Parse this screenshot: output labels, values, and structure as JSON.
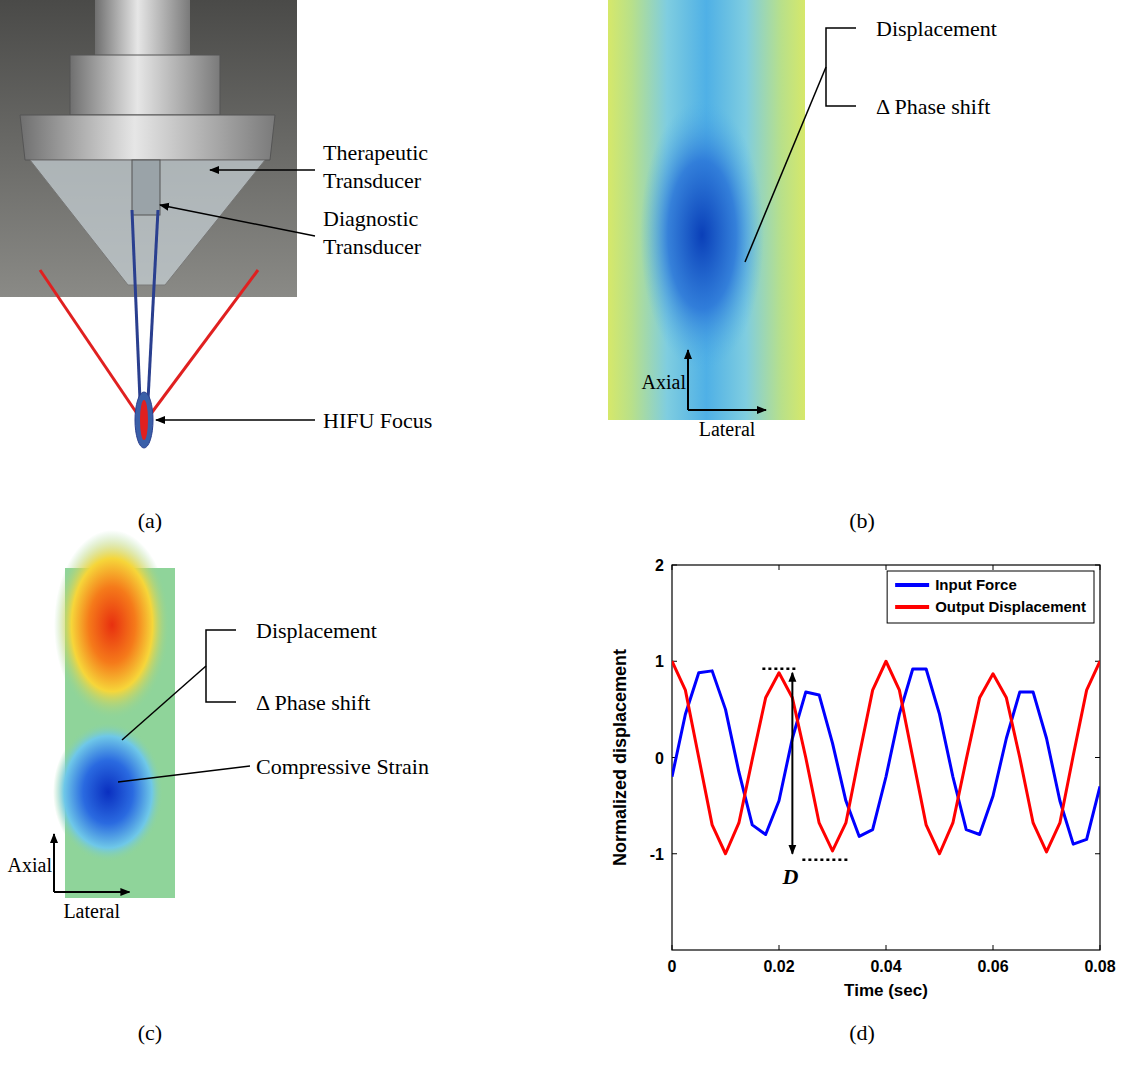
{
  "figure": {
    "panel_labels": [
      "(a)",
      "(b)",
      "(c)",
      "(d)"
    ],
    "a": {
      "labels": [
        "Therapeutic Transducer",
        "Diagnostic Transducer",
        "HIFU Focus"
      ]
    },
    "b": {
      "labels": [
        "Displacement",
        "Δ Phase shift"
      ],
      "axes": [
        "Axial",
        "Lateral"
      ]
    },
    "c": {
      "labels": [
        "Displacement",
        "Δ Phase shift",
        "Compressive Strain"
      ],
      "axes": [
        "Axial",
        "Lateral"
      ]
    }
  },
  "chart_data": {
    "type": "line",
    "x_label": "Time (sec)",
    "y_label": "Normalized displacement",
    "x": [
      0,
      0.0025,
      0.005,
      0.0075,
      0.01,
      0.0125,
      0.015,
      0.0175,
      0.02,
      0.0225,
      0.025,
      0.0275,
      0.03,
      0.0325,
      0.035,
      0.0375,
      0.04,
      0.0425,
      0.045,
      0.0475,
      0.05,
      0.0525,
      0.055,
      0.0575,
      0.06,
      0.0625,
      0.065,
      0.0675,
      0.07,
      0.0725,
      0.075,
      0.0775,
      0.08
    ],
    "series": [
      {
        "name": "Input Force",
        "color": "#0000ff",
        "values": [
          -0.2,
          0.45,
          0.88,
          0.9,
          0.5,
          -0.15,
          -0.7,
          -0.8,
          -0.45,
          0.2,
          0.68,
          0.65,
          0.15,
          -0.45,
          -0.82,
          -0.75,
          -0.2,
          0.45,
          0.92,
          0.92,
          0.45,
          -0.2,
          -0.75,
          -0.8,
          -0.4,
          0.2,
          0.68,
          0.68,
          0.2,
          -0.45,
          -0.9,
          -0.85,
          -0.3
        ]
      },
      {
        "name": "Output Displacement",
        "color": "#ff0000",
        "values": [
          1.0,
          0.7,
          0.0,
          -0.7,
          -1.0,
          -0.68,
          -0.02,
          0.62,
          0.88,
          0.62,
          0.0,
          -0.68,
          -0.97,
          -0.68,
          0.02,
          0.7,
          1.0,
          0.7,
          0.0,
          -0.7,
          -1.0,
          -0.68,
          -0.02,
          0.62,
          0.87,
          0.62,
          0.0,
          -0.68,
          -0.98,
          -0.68,
          0.02,
          0.7,
          1.0
        ]
      }
    ],
    "xlim": [
      0,
      0.08
    ],
    "xticks": [
      0,
      0.02,
      0.04,
      0.06,
      0.08
    ],
    "ylim": [
      -2,
      2
    ],
    "yticks": [
      -1,
      0,
      1,
      2
    ],
    "grid": false,
    "legend": "upper right",
    "annotations": [
      {
        "text": "D",
        "x": 0.0225,
        "y_top": 0.88,
        "y_bottom": -1
      }
    ]
  }
}
